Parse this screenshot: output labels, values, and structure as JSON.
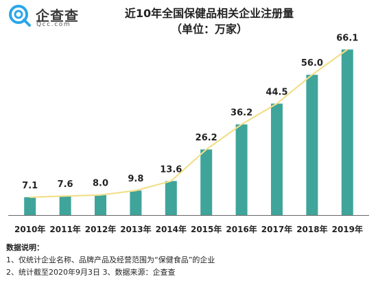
{
  "brand": {
    "logo_name": "企查查",
    "logo_url": "Qcc.com",
    "logo_color": "#2aa6ea"
  },
  "chart_data": {
    "type": "bar",
    "title": "近10年全国保健品相关企业注册量",
    "subtitle": "（单位：万家）",
    "categories": [
      "2010年",
      "2011年",
      "2012年",
      "2013年",
      "2014年",
      "2015年",
      "2016年",
      "2017年",
      "2018年",
      "2019年"
    ],
    "values": [
      7.1,
      7.6,
      8.0,
      9.8,
      13.6,
      26.2,
      36.2,
      44.5,
      56.0,
      66.1
    ],
    "value_labels": [
      "7.1",
      "7.6",
      "8.0",
      "9.8",
      "13.6",
      "26.2",
      "36.2",
      "44.5",
      "56.0",
      "66.1"
    ],
    "overlay": "line through bar tops",
    "ylim": [
      0,
      70
    ],
    "grid": false,
    "colors": {
      "bar": "#3fa49a",
      "line": "#f3de8a",
      "axis": "#666666"
    }
  },
  "notes": {
    "title": "数据说明：",
    "line1": "1、仅统计企业名称、品牌产品及经营范围为“保健食品”的企业",
    "line2": "2、统计截至2020年9月3日   3、数据来源：企查查"
  }
}
